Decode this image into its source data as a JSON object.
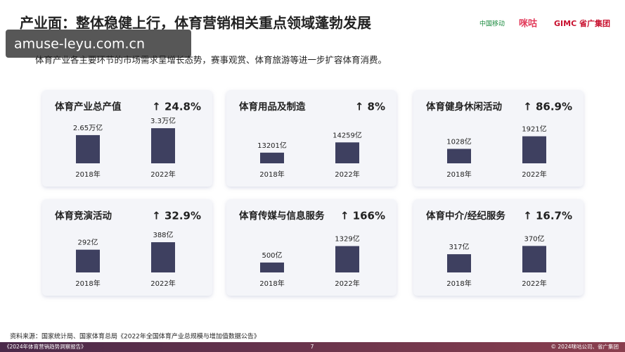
{
  "header": {
    "title": "产业面：整体稳健上行，体育营销相关重点领域蓬勃发展",
    "subtitle": "体育产业各主要环节的市场需求呈增长态势，赛事观赏、体育旅游等进一步扩容体育消费。",
    "logos": [
      "中国移动",
      "咪咕",
      "GIMC 省广集团"
    ]
  },
  "watermark": "amuse-leyu.com.cn",
  "chart_data": [
    {
      "type": "bar",
      "title": "体育产业总产值",
      "annotation": "↑ 24.8%",
      "categories": [
        "2018年",
        "2022年"
      ],
      "values": [
        2.65,
        3.3
      ],
      "value_labels": [
        "2.65万亿",
        "3.3万亿"
      ],
      "ylim": [
        0,
        4.1
      ],
      "color": "#3e4060"
    },
    {
      "type": "bar",
      "title": "体育用品及制造",
      "annotation": "↑ 8%",
      "categories": [
        "2018年",
        "2022年"
      ],
      "values": [
        13201,
        14259
      ],
      "value_labels": [
        "13201亿",
        "14259亿"
      ],
      "ylim": [
        12100,
        16600
      ],
      "color": "#3e4060"
    },
    {
      "type": "bar",
      "title": "体育健身休闲活动",
      "annotation": "↑ 86.9%",
      "categories": [
        "2018年",
        "2022年"
      ],
      "values": [
        1028,
        1921
      ],
      "value_labels": [
        "1028亿",
        "1921亿"
      ],
      "ylim": [
        0,
        3100
      ],
      "color": "#3e4060"
    },
    {
      "type": "bar",
      "title": "体育竞演活动",
      "annotation": "↑ 32.9%",
      "categories": [
        "2018年",
        "2022年"
      ],
      "values": [
        292,
        388
      ],
      "value_labels": [
        "292亿",
        "388亿"
      ],
      "ylim": [
        0,
        560
      ],
      "color": "#3e4060"
    },
    {
      "type": "bar",
      "title": "体育传媒与信息服务",
      "annotation": "↑ 166%",
      "categories": [
        "2018年",
        "2022年"
      ],
      "values": [
        500,
        1329
      ],
      "value_labels": [
        "500亿",
        "1329亿"
      ],
      "ylim": [
        0,
        2200
      ],
      "color": "#3e4060"
    },
    {
      "type": "bar",
      "title": "体育中介/经纪服务",
      "annotation": "↑ 16.7%",
      "categories": [
        "2018年",
        "2022年"
      ],
      "values": [
        317,
        370
      ],
      "value_labels": [
        "317亿",
        "370亿"
      ],
      "ylim": [
        200,
        480
      ],
      "color": "#3e4060"
    }
  ],
  "footer": {
    "source": "资料来源：国家统计局、国家体育总局《2022年全国体育产业总规模与增加值数据公告》",
    "report": "《2024年体育营销趋势洞察报告》",
    "page": "7",
    "copyright": "© 2024咪咕公司、省广集团"
  }
}
